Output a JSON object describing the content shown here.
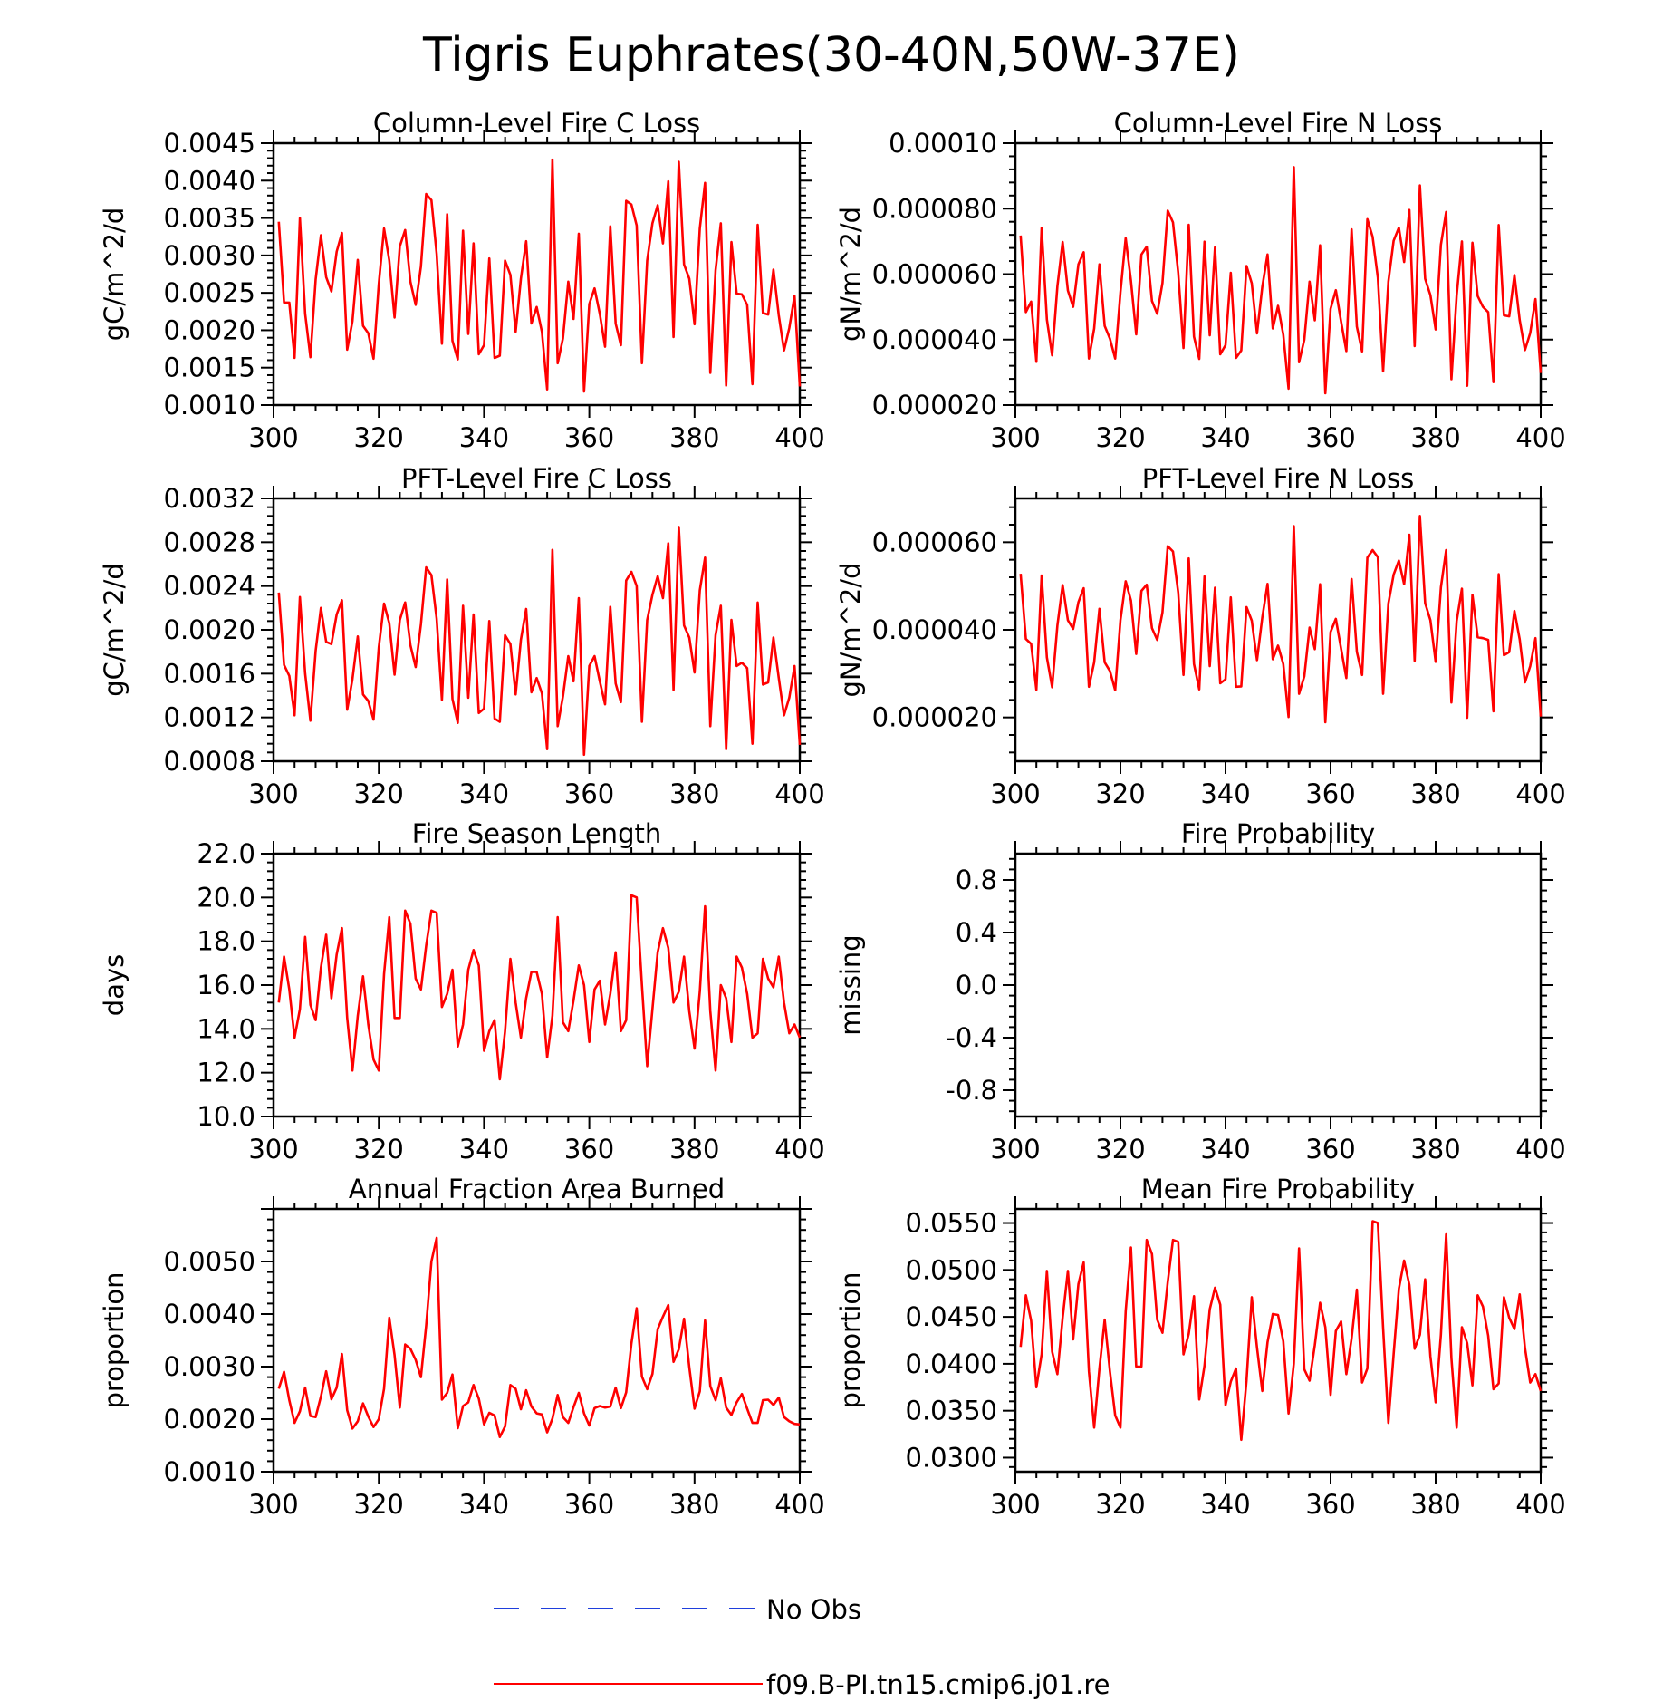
{
  "figure": {
    "title": "Tigris Euphrates(30-40N,50W-37E)"
  },
  "legend": {
    "items": [
      {
        "label": "No Obs",
        "color": "#1f3fdc",
        "style": "dashed"
      },
      {
        "label": "f09.B-PI.tn15.cmip6.j01.re",
        "color": "#ff0000",
        "style": "solid"
      }
    ]
  },
  "chart_data": [
    {
      "type": "line",
      "title": "Column-Level Fire C Loss",
      "ylabel": "gC/m^2/d",
      "xlim": [
        300,
        400
      ],
      "ylim": [
        0.001,
        0.0045
      ],
      "xticks": [
        "300",
        "320",
        "340",
        "360",
        "380",
        "400"
      ],
      "yticks": [
        "0.0010",
        "0.0015",
        "0.0020",
        "0.0025",
        "0.0030",
        "0.0035",
        "0.0040",
        "0.0045"
      ],
      "x_start": 301,
      "series": [
        {
          "color": "#ff0000",
          "values": [
            0.00345,
            0.00237,
            0.00237,
            0.00163,
            0.0035,
            0.00222,
            0.00164,
            0.00268,
            0.00327,
            0.00271,
            0.00252,
            0.00305,
            0.0033,
            0.00174,
            0.00212,
            0.00294,
            0.00206,
            0.00196,
            0.00162,
            0.00262,
            0.00336,
            0.00293,
            0.00217,
            0.00312,
            0.00334,
            0.00265,
            0.00234,
            0.00285,
            0.00382,
            0.00374,
            0.00302,
            0.00182,
            0.00355,
            0.00186,
            0.00161,
            0.00333,
            0.00195,
            0.00316,
            0.00168,
            0.0018,
            0.00296,
            0.00163,
            0.00166,
            0.00293,
            0.00274,
            0.00198,
            0.00269,
            0.00319,
            0.00209,
            0.00231,
            0.00198,
            0.00121,
            0.00428,
            0.00156,
            0.00189,
            0.00265,
            0.00215,
            0.00329,
            0.00118,
            0.00235,
            0.00256,
            0.00222,
            0.00178,
            0.00339,
            0.00209,
            0.0018,
            0.00373,
            0.00368,
            0.0034,
            0.00156,
            0.00293,
            0.00343,
            0.00367,
            0.00316,
            0.00399,
            0.00191,
            0.00425,
            0.00288,
            0.00269,
            0.00208,
            0.00336,
            0.00397,
            0.00143,
            0.0028,
            0.00343,
            0.00126,
            0.00318,
            0.00249,
            0.00248,
            0.00234,
            0.00128,
            0.00341,
            0.00223,
            0.00221,
            0.00281,
            0.0022,
            0.00173,
            0.00203,
            0.00246,
            0.00125
          ]
        }
      ]
    },
    {
      "type": "line",
      "title": "Column-Level Fire N Loss",
      "ylabel": "gN/m^2/d",
      "xlim": [
        300,
        400
      ],
      "ylim": [
        2e-05,
        0.0001
      ],
      "xticks": [
        "300",
        "320",
        "340",
        "360",
        "380",
        "400"
      ],
      "yticks": [
        "0.000020",
        "0.000040",
        "0.000060",
        "0.000080",
        "0.00010"
      ],
      "x_start": 301,
      "series": [
        {
          "color": "#ff0000",
          "values": [
            7.18e-05,
            4.84e-05,
            5.16e-05,
            3.32e-05,
            7.41e-05,
            4.61e-05,
            3.52e-05,
            5.63e-05,
            6.98e-05,
            5.5e-05,
            5e-05,
            6.3e-05,
            6.67e-05,
            3.42e-05,
            4.34e-05,
            6.3e-05,
            4.42e-05,
            4.03e-05,
            3.42e-05,
            5.44e-05,
            7.1e-05,
            5.8e-05,
            4.16e-05,
            6.6e-05,
            6.84e-05,
            5.18e-05,
            4.79e-05,
            5.73e-05,
            7.94e-05,
            7.58e-05,
            6.04e-05,
            3.74e-05,
            7.51e-05,
            4.09e-05,
            3.41e-05,
            6.99e-05,
            4.13e-05,
            6.82e-05,
            3.55e-05,
            3.83e-05,
            6.04e-05,
            3.44e-05,
            3.67e-05,
            6.25e-05,
            5.72e-05,
            4.19e-05,
            5.61e-05,
            6.6e-05,
            4.34e-05,
            5.03e-05,
            4.15e-05,
            2.5e-05,
            9.27e-05,
            3.31e-05,
            4e-05,
            5.77e-05,
            4.59e-05,
            6.88e-05,
            2.36e-05,
            4.94e-05,
            5.51e-05,
            4.55e-05,
            3.65e-05,
            7.37e-05,
            4.4e-05,
            3.64e-05,
            7.68e-05,
            7.14e-05,
            5.89e-05,
            3.03e-05,
            5.77e-05,
            7.02e-05,
            7.42e-05,
            6.37e-05,
            7.96e-05,
            3.8e-05,
            8.71e-05,
            5.86e-05,
            5.36e-05,
            4.31e-05,
            6.9e-05,
            7.9e-05,
            2.79e-05,
            5.35e-05,
            7e-05,
            2.59e-05,
            6.96e-05,
            5.33e-05,
            5e-05,
            4.84e-05,
            2.7e-05,
            7.5e-05,
            4.74e-05,
            4.71e-05,
            5.97e-05,
            4.59e-05,
            3.68e-05,
            4.2e-05,
            5.24e-05,
            2.98e-05
          ]
        }
      ]
    },
    {
      "type": "line",
      "title": "PFT-Level Fire C Loss",
      "ylabel": "gC/m^2/d",
      "xlim": [
        300,
        400
      ],
      "ylim": [
        0.0008,
        0.0032
      ],
      "xticks": [
        "300",
        "320",
        "340",
        "360",
        "380",
        "400"
      ],
      "yticks": [
        "0.0008",
        "0.0012",
        "0.0016",
        "0.0020",
        "0.0024",
        "0.0028",
        "0.0032"
      ],
      "x_start": 301,
      "series": [
        {
          "color": "#ff0000",
          "values": [
            0.00234,
            0.00168,
            0.00158,
            0.00122,
            0.0023,
            0.0016,
            0.00117,
            0.00181,
            0.0022,
            0.00189,
            0.00187,
            0.00214,
            0.00227,
            0.00127,
            0.00155,
            0.00194,
            0.00141,
            0.00135,
            0.00118,
            0.00184,
            0.00224,
            0.00206,
            0.00159,
            0.00209,
            0.00225,
            0.00186,
            0.00166,
            0.00205,
            0.00257,
            0.0025,
            0.0021,
            0.00136,
            0.00246,
            0.00137,
            0.00115,
            0.00222,
            0.00138,
            0.00214,
            0.00124,
            0.00128,
            0.00208,
            0.00119,
            0.00116,
            0.00195,
            0.00187,
            0.00141,
            0.00191,
            0.00219,
            0.00143,
            0.00156,
            0.00142,
            0.00091,
            0.00273,
            0.00112,
            0.00139,
            0.00176,
            0.00153,
            0.00229,
            0.00086,
            0.00167,
            0.00176,
            0.00153,
            0.00132,
            0.00221,
            0.00151,
            0.00134,
            0.00245,
            0.00253,
            0.0024,
            0.00116,
            0.00209,
            0.00232,
            0.00249,
            0.00229,
            0.00279,
            0.00145,
            0.00294,
            0.00204,
            0.00193,
            0.00161,
            0.00236,
            0.00266,
            0.00112,
            0.00195,
            0.00222,
            0.00091,
            0.00209,
            0.00167,
            0.0017,
            0.00165,
            0.00096,
            0.00225,
            0.0015,
            0.00152,
            0.00193,
            0.00156,
            0.00122,
            0.00138,
            0.00167,
            0.00095
          ]
        }
      ]
    },
    {
      "type": "line",
      "title": "PFT-Level Fire N Loss",
      "ylabel": "gN/m^2/d",
      "xlim": [
        300,
        400
      ],
      "ylim": [
        1e-05,
        7e-05
      ],
      "xticks": [
        "300",
        "320",
        "340",
        "360",
        "380",
        "400"
      ],
      "yticks": [
        "0.000020",
        "0.000040",
        "0.000060"
      ],
      "x_start": 301,
      "series": [
        {
          "color": "#ff0000",
          "values": [
            5.28e-05,
            3.79e-05,
            3.68e-05,
            2.63e-05,
            5.24e-05,
            3.37e-05,
            2.69e-05,
            4.1e-05,
            5.02e-05,
            4.22e-05,
            4.02e-05,
            4.63e-05,
            4.95e-05,
            2.7e-05,
            3.26e-05,
            4.48e-05,
            3.26e-05,
            3.06e-05,
            2.62e-05,
            4.22e-05,
            5.11e-05,
            4.67e-05,
            3.45e-05,
            4.89e-05,
            5.03e-05,
            4.04e-05,
            3.77e-05,
            4.4e-05,
            5.91e-05,
            5.79e-05,
            4.85e-05,
            2.97e-05,
            5.63e-05,
            3.22e-05,
            2.64e-05,
            5.22e-05,
            3.17e-05,
            4.96e-05,
            2.78e-05,
            2.87e-05,
            4.74e-05,
            2.7e-05,
            2.71e-05,
            4.52e-05,
            4.21e-05,
            3.31e-05,
            4.28e-05,
            5.05e-05,
            3.33e-05,
            3.64e-05,
            3.22e-05,
            2.01e-05,
            6.37e-05,
            2.54e-05,
            2.94e-05,
            4.05e-05,
            3.56e-05,
            5.04e-05,
            1.89e-05,
            3.95e-05,
            4.25e-05,
            3.57e-05,
            2.9e-05,
            5.16e-05,
            3.5e-05,
            2.97e-05,
            5.65e-05,
            5.82e-05,
            5.66e-05,
            2.54e-05,
            4.6e-05,
            5.26e-05,
            5.58e-05,
            5.04e-05,
            6.17e-05,
            3.29e-05,
            6.6e-05,
            4.61e-05,
            4.22e-05,
            3.27e-05,
            4.97e-05,
            5.82e-05,
            2.34e-05,
            4.2e-05,
            4.94e-05,
            1.99e-05,
            4.8e-05,
            3.83e-05,
            3.81e-05,
            3.77e-05,
            2.14e-05,
            5.27e-05,
            3.42e-05,
            3.49e-05,
            4.43e-05,
            3.78e-05,
            2.8e-05,
            3.17e-05,
            3.81e-05,
            2.02e-05
          ]
        }
      ]
    },
    {
      "type": "line",
      "title": "Fire Season Length",
      "ylabel": "days",
      "xlim": [
        300,
        400
      ],
      "ylim": [
        10,
        22
      ],
      "xticks": [
        "300",
        "320",
        "340",
        "360",
        "380",
        "400"
      ],
      "yticks": [
        "10.0",
        "12.0",
        "14.0",
        "16.0",
        "18.0",
        "20.0",
        "22.0"
      ],
      "x_start": 301,
      "series": [
        {
          "color": "#ff0000",
          "values": [
            15.2,
            17.3,
            15.8,
            13.6,
            14.9,
            18.2,
            15.1,
            14.4,
            16.8,
            18.3,
            15.4,
            17.4,
            18.6,
            14.5,
            12.1,
            14.6,
            16.4,
            14.2,
            12.6,
            12.1,
            16.5,
            19.1,
            14.5,
            14.5,
            19.4,
            18.8,
            16.3,
            15.8,
            17.8,
            19.4,
            19.3,
            15.0,
            15.6,
            16.7,
            13.2,
            14.2,
            16.7,
            17.6,
            16.9,
            13.0,
            13.9,
            14.4,
            11.7,
            13.9,
            17.2,
            15.2,
            13.6,
            15.4,
            16.6,
            16.6,
            15.6,
            12.7,
            14.6,
            19.1,
            14.3,
            13.9,
            15.3,
            16.9,
            16.0,
            13.4,
            15.8,
            16.2,
            14.2,
            15.6,
            17.5,
            13.9,
            14.4,
            20.1,
            20.0,
            16.0,
            12.3,
            14.9,
            17.5,
            18.6,
            17.7,
            15.2,
            15.7,
            17.3,
            14.8,
            13.1,
            15.7,
            19.6,
            14.8,
            12.1,
            16.0,
            15.4,
            13.4,
            17.3,
            16.8,
            15.6,
            13.6,
            13.8,
            17.2,
            16.3,
            15.9,
            17.3,
            15.2,
            13.8,
            14.2,
            13.6
          ]
        }
      ]
    },
    {
      "type": "line",
      "title": "Fire Probability",
      "ylabel": "missing",
      "xlim": [
        300,
        400
      ],
      "ylim": [
        -1,
        1
      ],
      "xticks": [
        "300",
        "320",
        "340",
        "360",
        "380",
        "400"
      ],
      "yticks": [
        "-0.8",
        "-0.4",
        "0.0",
        "0.4",
        "0.8"
      ],
      "x_start": 301,
      "series": []
    },
    {
      "type": "line",
      "title": "Annual Fraction Area Burned",
      "ylabel": "proportion",
      "xlim": [
        300,
        400
      ],
      "ylim": [
        0.001,
        0.006
      ],
      "xticks": [
        "300",
        "320",
        "340",
        "360",
        "380",
        "400"
      ],
      "yticks": [
        "0.0010",
        "0.0020",
        "0.0030",
        "0.0040",
        "0.0050"
      ],
      "x_start": 301,
      "series": [
        {
          "color": "#ff0000",
          "values": [
            0.00258,
            0.0029,
            0.00236,
            0.00193,
            0.00215,
            0.0026,
            0.00206,
            0.00204,
            0.00243,
            0.00291,
            0.00238,
            0.0026,
            0.00324,
            0.00217,
            0.00182,
            0.00196,
            0.0023,
            0.00205,
            0.00185,
            0.002,
            0.00258,
            0.00393,
            0.00322,
            0.00222,
            0.00342,
            0.00334,
            0.00313,
            0.0028,
            0.00378,
            0.005,
            0.00545,
            0.00237,
            0.0025,
            0.00285,
            0.00183,
            0.00225,
            0.00232,
            0.00265,
            0.00239,
            0.0019,
            0.00212,
            0.00207,
            0.00166,
            0.00186,
            0.00265,
            0.00258,
            0.00219,
            0.00255,
            0.00224,
            0.00211,
            0.00209,
            0.00175,
            0.00201,
            0.00246,
            0.00204,
            0.00193,
            0.00223,
            0.0025,
            0.00211,
            0.00188,
            0.00221,
            0.00225,
            0.00222,
            0.00224,
            0.0026,
            0.00221,
            0.00251,
            0.00344,
            0.00411,
            0.00281,
            0.00257,
            0.00286,
            0.00371,
            0.00395,
            0.00417,
            0.00309,
            0.00333,
            0.00391,
            0.00299,
            0.0022,
            0.00253,
            0.00388,
            0.00263,
            0.00236,
            0.00278,
            0.00222,
            0.00208,
            0.00232,
            0.00248,
            0.0022,
            0.00193,
            0.00193,
            0.00236,
            0.00237,
            0.00227,
            0.00241,
            0.00204,
            0.00196,
            0.00191,
            0.0019
          ]
        }
      ]
    },
    {
      "type": "line",
      "title": "Mean Fire Probability",
      "ylabel": "proportion",
      "xlim": [
        300,
        400
      ],
      "ylim": [
        0.0285,
        0.0565
      ],
      "xticks": [
        "300",
        "320",
        "340",
        "360",
        "380",
        "400"
      ],
      "yticks": [
        "0.0300",
        "0.0350",
        "0.0400",
        "0.0450",
        "0.0500",
        "0.0550"
      ],
      "x_start": 301,
      "series": [
        {
          "color": "#ff0000",
          "values": [
            0.0418,
            0.0473,
            0.0446,
            0.0375,
            0.041,
            0.0499,
            0.0413,
            0.0389,
            0.0449,
            0.0499,
            0.0426,
            0.0485,
            0.0508,
            0.0392,
            0.0332,
            0.0395,
            0.0447,
            0.0392,
            0.0345,
            0.0332,
            0.0456,
            0.0524,
            0.0397,
            0.0397,
            0.0532,
            0.0517,
            0.0447,
            0.0433,
            0.0487,
            0.0532,
            0.053,
            0.041,
            0.0432,
            0.0472,
            0.0362,
            0.0398,
            0.0458,
            0.0481,
            0.0463,
            0.0356,
            0.0381,
            0.0395,
            0.0319,
            0.0382,
            0.0471,
            0.0417,
            0.0371,
            0.0423,
            0.0453,
            0.0452,
            0.0424,
            0.0347,
            0.04,
            0.0523,
            0.0394,
            0.0382,
            0.042,
            0.0465,
            0.0439,
            0.0367,
            0.0435,
            0.0445,
            0.0389,
            0.0427,
            0.0479,
            0.038,
            0.0395,
            0.0552,
            0.055,
            0.0438,
            0.0337,
            0.041,
            0.048,
            0.051,
            0.0484,
            0.0416,
            0.0431,
            0.049,
            0.0408,
            0.0359,
            0.0431,
            0.0538,
            0.0406,
            0.0332,
            0.0439,
            0.0422,
            0.0377,
            0.0473,
            0.0461,
            0.043,
            0.0373,
            0.0379,
            0.0471,
            0.0449,
            0.0437,
            0.0474,
            0.0417,
            0.038,
            0.0389,
            0.0371
          ]
        }
      ]
    }
  ]
}
